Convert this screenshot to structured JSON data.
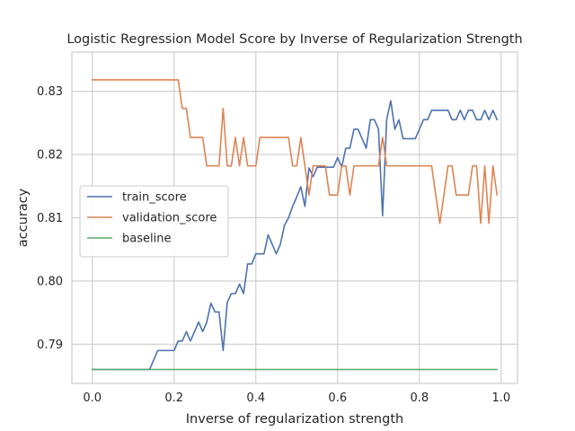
{
  "chart_data": {
    "type": "line",
    "title": "Logistic Regression Model Score by Inverse of Regularization Strength",
    "xlabel": "Inverse of regularization strength",
    "ylabel": "accuracy",
    "xlim": [
      -0.05,
      1.04
    ],
    "ylim": [
      0.7838,
      0.8362
    ],
    "xticks": [
      0.0,
      0.2,
      0.4,
      0.6,
      0.8,
      1.0
    ],
    "xtick_labels": [
      "0.0",
      "0.2",
      "0.4",
      "0.6",
      "0.8",
      "1.0"
    ],
    "yticks": [
      0.79,
      0.8,
      0.81,
      0.82,
      0.83
    ],
    "ytick_labels": [
      "0.79",
      "0.80",
      "0.81",
      "0.82",
      "0.83"
    ],
    "grid": true,
    "legend_position": "center-left",
    "series": [
      {
        "name": "train_score",
        "color": "#4c72b0",
        "x": [
          0.0,
          0.14,
          0.16,
          0.2,
          0.21,
          0.22,
          0.23,
          0.24,
          0.25,
          0.26,
          0.27,
          0.28,
          0.29,
          0.3,
          0.31,
          0.32,
          0.33,
          0.34,
          0.35,
          0.36,
          0.37,
          0.38,
          0.39,
          0.4,
          0.41,
          0.42,
          0.43,
          0.44,
          0.45,
          0.46,
          0.47,
          0.48,
          0.49,
          0.5,
          0.51,
          0.52,
          0.53,
          0.54,
          0.55,
          0.56,
          0.57,
          0.58,
          0.59,
          0.6,
          0.61,
          0.62,
          0.63,
          0.64,
          0.65,
          0.66,
          0.67,
          0.68,
          0.69,
          0.7,
          0.71,
          0.72,
          0.73,
          0.74,
          0.75,
          0.76,
          0.77,
          0.78,
          0.79,
          0.8,
          0.81,
          0.82,
          0.83,
          0.84,
          0.85,
          0.86,
          0.87,
          0.88,
          0.89,
          0.9,
          0.91,
          0.92,
          0.93,
          0.94,
          0.95,
          0.96,
          0.97,
          0.98,
          0.99
        ],
        "y": [
          0.786,
          0.786,
          0.789,
          0.789,
          0.7905,
          0.7905,
          0.792,
          0.7905,
          0.792,
          0.7935,
          0.792,
          0.7935,
          0.7965,
          0.7951,
          0.7951,
          0.789,
          0.7966,
          0.798,
          0.798,
          0.7995,
          0.798,
          0.8027,
          0.8027,
          0.8043,
          0.8043,
          0.8043,
          0.8073,
          0.8058,
          0.8043,
          0.8058,
          0.8088,
          0.81,
          0.8118,
          0.8133,
          0.8149,
          0.8118,
          0.8179,
          0.8165,
          0.818,
          0.818,
          0.818,
          0.818,
          0.818,
          0.8195,
          0.818,
          0.821,
          0.821,
          0.824,
          0.824,
          0.8225,
          0.821,
          0.8255,
          0.8255,
          0.824,
          0.8103,
          0.8255,
          0.8285,
          0.824,
          0.8255,
          0.8225,
          0.8225,
          0.8225,
          0.8225,
          0.824,
          0.8255,
          0.8255,
          0.827,
          0.827,
          0.827,
          0.827,
          0.827,
          0.8255,
          0.8255,
          0.827,
          0.8255,
          0.827,
          0.827,
          0.8255,
          0.8255,
          0.827,
          0.8255,
          0.827,
          0.8255
        ]
      },
      {
        "name": "validation_score",
        "color": "#dd8452",
        "x": [
          0.0,
          0.21,
          0.22,
          0.23,
          0.24,
          0.25,
          0.26,
          0.27,
          0.28,
          0.29,
          0.3,
          0.31,
          0.32,
          0.33,
          0.34,
          0.35,
          0.36,
          0.37,
          0.38,
          0.39,
          0.4,
          0.41,
          0.42,
          0.43,
          0.44,
          0.45,
          0.46,
          0.47,
          0.48,
          0.49,
          0.5,
          0.51,
          0.52,
          0.53,
          0.54,
          0.55,
          0.56,
          0.57,
          0.58,
          0.59,
          0.6,
          0.61,
          0.62,
          0.63,
          0.64,
          0.65,
          0.66,
          0.67,
          0.68,
          0.69,
          0.7,
          0.71,
          0.72,
          0.73,
          0.74,
          0.75,
          0.76,
          0.77,
          0.78,
          0.79,
          0.8,
          0.81,
          0.82,
          0.83,
          0.84,
          0.85,
          0.86,
          0.87,
          0.88,
          0.89,
          0.9,
          0.91,
          0.92,
          0.93,
          0.94,
          0.95,
          0.96,
          0.97,
          0.98,
          0.99
        ],
        "y": [
          0.8318,
          0.8318,
          0.8273,
          0.8273,
          0.8227,
          0.8227,
          0.8227,
          0.8227,
          0.8182,
          0.8182,
          0.8182,
          0.8182,
          0.8273,
          0.8182,
          0.8182,
          0.8227,
          0.8182,
          0.8227,
          0.8182,
          0.8182,
          0.8182,
          0.8227,
          0.8227,
          0.8227,
          0.8227,
          0.8227,
          0.8227,
          0.8227,
          0.8227,
          0.8182,
          0.8182,
          0.8227,
          0.8182,
          0.8136,
          0.8182,
          0.8182,
          0.8182,
          0.8182,
          0.8136,
          0.8136,
          0.8136,
          0.8182,
          0.8182,
          0.8136,
          0.8182,
          0.8182,
          0.8182,
          0.8182,
          0.8182,
          0.8182,
          0.8182,
          0.8227,
          0.8182,
          0.8182,
          0.8182,
          0.8182,
          0.8182,
          0.8182,
          0.8182,
          0.8182,
          0.8182,
          0.8182,
          0.8182,
          0.8182,
          0.8136,
          0.8091,
          0.8136,
          0.8182,
          0.8182,
          0.8136,
          0.8136,
          0.8136,
          0.8136,
          0.8182,
          0.8182,
          0.8091,
          0.8182,
          0.8091,
          0.8182,
          0.8136
        ]
      },
      {
        "name": "baseline",
        "color": "#55a868",
        "x": [
          0.0,
          0.99
        ],
        "y": [
          0.786,
          0.786
        ]
      }
    ]
  }
}
